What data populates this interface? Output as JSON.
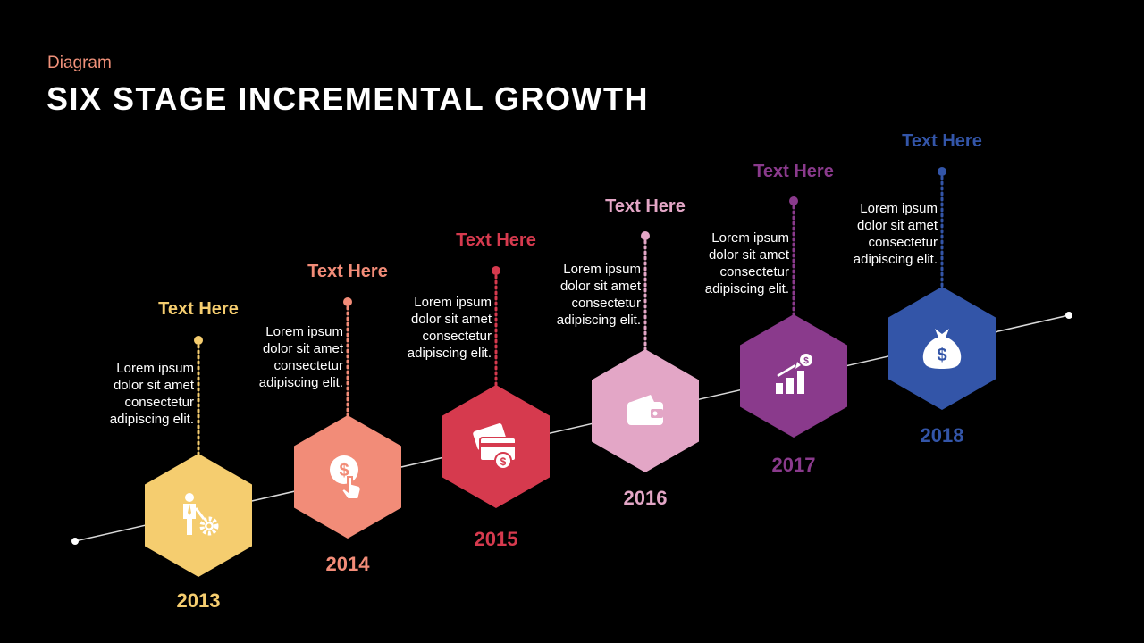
{
  "header": {
    "subtitle": "Diagram",
    "title": "SIX STAGE INCREMENTAL GROWTH"
  },
  "colors": {
    "background": "#000000",
    "line": "#d9d9d9",
    "text": "#ffffff"
  },
  "stages": [
    {
      "year": "2013",
      "heading": "Text Here",
      "body": [
        "Lorem ipsum",
        "dolor sit amet",
        "consectetur",
        "adipiscing elit."
      ],
      "color": "#f5cd6f",
      "icon": "businessman-gear-icon"
    },
    {
      "year": "2014",
      "heading": "Text Here",
      "body": [
        "Lorem ipsum",
        "dolor sit amet",
        "consectetur",
        "adipiscing elit."
      ],
      "color": "#f28c78",
      "icon": "dollar-touch-icon"
    },
    {
      "year": "2015",
      "heading": "Text Here",
      "body": [
        "Lorem ipsum",
        "dolor sit amet",
        "consectetur",
        "adipiscing elit."
      ],
      "color": "#d63a4e",
      "icon": "cards-dollar-icon"
    },
    {
      "year": "2016",
      "heading": "Text Here",
      "body": [
        "Lorem ipsum",
        "dolor sit amet",
        "consectetur",
        "adipiscing elit."
      ],
      "color": "#e3a6c6",
      "icon": "wallet-icon"
    },
    {
      "year": "2017",
      "heading": "Text Here",
      "body": [
        "Lorem ipsum",
        "dolor sit amet",
        "consectetur",
        "adipiscing elit."
      ],
      "color": "#8a3a8c",
      "icon": "growth-chart-icon"
    },
    {
      "year": "2018",
      "heading": "Text Here",
      "body": [
        "Lorem ipsum",
        "dolor sit amet",
        "consectetur",
        "adipiscing elit."
      ],
      "color": "#3355a8",
      "icon": "money-bag-icon"
    }
  ]
}
